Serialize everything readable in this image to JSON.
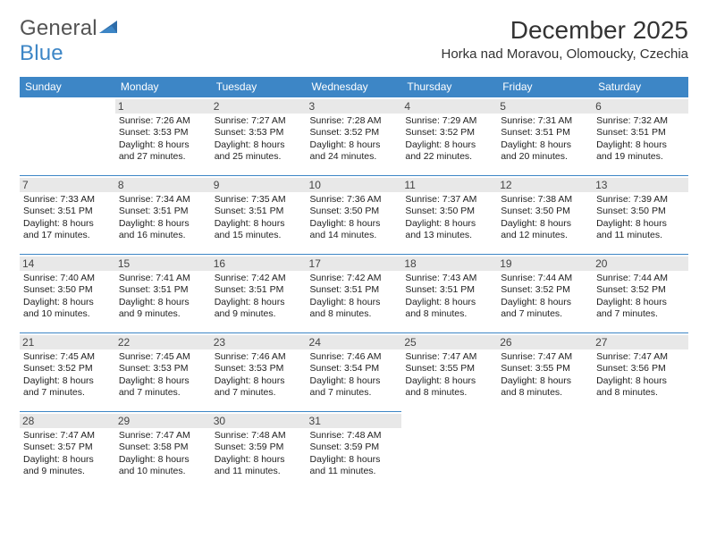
{
  "brand": {
    "word1": "General",
    "word2": "Blue"
  },
  "title": "December 2025",
  "location": "Horka nad Moravou, Olomoucky, Czechia",
  "colors": {
    "header_bg": "#3d86c6",
    "header_text": "#ffffff",
    "daynum_bg": "#e8e8e8",
    "border": "#3d86c6",
    "text": "#222222",
    "brand_gray": "#545454",
    "brand_blue": "#3d86c6"
  },
  "weekdays": [
    "Sunday",
    "Monday",
    "Tuesday",
    "Wednesday",
    "Thursday",
    "Friday",
    "Saturday"
  ],
  "weeks": [
    [
      null,
      {
        "n": "1",
        "sr": "7:26 AM",
        "ss": "3:53 PM",
        "dl": "8 hours and 27 minutes."
      },
      {
        "n": "2",
        "sr": "7:27 AM",
        "ss": "3:53 PM",
        "dl": "8 hours and 25 minutes."
      },
      {
        "n": "3",
        "sr": "7:28 AM",
        "ss": "3:52 PM",
        "dl": "8 hours and 24 minutes."
      },
      {
        "n": "4",
        "sr": "7:29 AM",
        "ss": "3:52 PM",
        "dl": "8 hours and 22 minutes."
      },
      {
        "n": "5",
        "sr": "7:31 AM",
        "ss": "3:51 PM",
        "dl": "8 hours and 20 minutes."
      },
      {
        "n": "6",
        "sr": "7:32 AM",
        "ss": "3:51 PM",
        "dl": "8 hours and 19 minutes."
      }
    ],
    [
      {
        "n": "7",
        "sr": "7:33 AM",
        "ss": "3:51 PM",
        "dl": "8 hours and 17 minutes."
      },
      {
        "n": "8",
        "sr": "7:34 AM",
        "ss": "3:51 PM",
        "dl": "8 hours and 16 minutes."
      },
      {
        "n": "9",
        "sr": "7:35 AM",
        "ss": "3:51 PM",
        "dl": "8 hours and 15 minutes."
      },
      {
        "n": "10",
        "sr": "7:36 AM",
        "ss": "3:50 PM",
        "dl": "8 hours and 14 minutes."
      },
      {
        "n": "11",
        "sr": "7:37 AM",
        "ss": "3:50 PM",
        "dl": "8 hours and 13 minutes."
      },
      {
        "n": "12",
        "sr": "7:38 AM",
        "ss": "3:50 PM",
        "dl": "8 hours and 12 minutes."
      },
      {
        "n": "13",
        "sr": "7:39 AM",
        "ss": "3:50 PM",
        "dl": "8 hours and 11 minutes."
      }
    ],
    [
      {
        "n": "14",
        "sr": "7:40 AM",
        "ss": "3:50 PM",
        "dl": "8 hours and 10 minutes."
      },
      {
        "n": "15",
        "sr": "7:41 AM",
        "ss": "3:51 PM",
        "dl": "8 hours and 9 minutes."
      },
      {
        "n": "16",
        "sr": "7:42 AM",
        "ss": "3:51 PM",
        "dl": "8 hours and 9 minutes."
      },
      {
        "n": "17",
        "sr": "7:42 AM",
        "ss": "3:51 PM",
        "dl": "8 hours and 8 minutes."
      },
      {
        "n": "18",
        "sr": "7:43 AM",
        "ss": "3:51 PM",
        "dl": "8 hours and 8 minutes."
      },
      {
        "n": "19",
        "sr": "7:44 AM",
        "ss": "3:52 PM",
        "dl": "8 hours and 7 minutes."
      },
      {
        "n": "20",
        "sr": "7:44 AM",
        "ss": "3:52 PM",
        "dl": "8 hours and 7 minutes."
      }
    ],
    [
      {
        "n": "21",
        "sr": "7:45 AM",
        "ss": "3:52 PM",
        "dl": "8 hours and 7 minutes."
      },
      {
        "n": "22",
        "sr": "7:45 AM",
        "ss": "3:53 PM",
        "dl": "8 hours and 7 minutes."
      },
      {
        "n": "23",
        "sr": "7:46 AM",
        "ss": "3:53 PM",
        "dl": "8 hours and 7 minutes."
      },
      {
        "n": "24",
        "sr": "7:46 AM",
        "ss": "3:54 PM",
        "dl": "8 hours and 7 minutes."
      },
      {
        "n": "25",
        "sr": "7:47 AM",
        "ss": "3:55 PM",
        "dl": "8 hours and 8 minutes."
      },
      {
        "n": "26",
        "sr": "7:47 AM",
        "ss": "3:55 PM",
        "dl": "8 hours and 8 minutes."
      },
      {
        "n": "27",
        "sr": "7:47 AM",
        "ss": "3:56 PM",
        "dl": "8 hours and 8 minutes."
      }
    ],
    [
      {
        "n": "28",
        "sr": "7:47 AM",
        "ss": "3:57 PM",
        "dl": "8 hours and 9 minutes."
      },
      {
        "n": "29",
        "sr": "7:47 AM",
        "ss": "3:58 PM",
        "dl": "8 hours and 10 minutes."
      },
      {
        "n": "30",
        "sr": "7:48 AM",
        "ss": "3:59 PM",
        "dl": "8 hours and 11 minutes."
      },
      {
        "n": "31",
        "sr": "7:48 AM",
        "ss": "3:59 PM",
        "dl": "8 hours and 11 minutes."
      },
      null,
      null,
      null
    ]
  ],
  "labels": {
    "sunrise": "Sunrise:",
    "sunset": "Sunset:",
    "daylight": "Daylight:"
  }
}
